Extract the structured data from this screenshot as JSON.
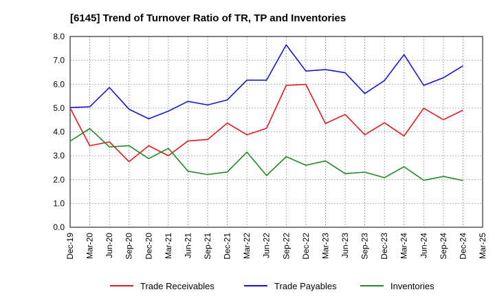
{
  "chart_data": {
    "type": "line",
    "title": "[6145]  Trend of Turnover Ratio of TR, TP and Inventories",
    "xlabel": "",
    "ylabel": "",
    "ylim": [
      0,
      8
    ],
    "yticks": [
      "0.0",
      "1.0",
      "2.0",
      "3.0",
      "4.0",
      "5.0",
      "6.0",
      "7.0",
      "8.0"
    ],
    "x_tick_labels": [
      "Dec-19",
      "Mar-20",
      "Jun-20",
      "Sep-20",
      "Dec-20",
      "Mar-21",
      "Jun-21",
      "Sep-21",
      "Dec-21",
      "Mar-22",
      "Jun-22",
      "Sep-22",
      "Dec-22",
      "Mar-23",
      "Jun-23",
      "Sep-23",
      "Dec-23",
      "Mar-24",
      "Jun-24",
      "Sep-24",
      "Dec-24",
      "Mar-25"
    ],
    "x": [
      "Dec-19",
      "Mar-20",
      "Jun-20",
      "Sep-20",
      "Dec-20",
      "Mar-21",
      "Jun-21",
      "Sep-21",
      "Dec-21",
      "Mar-22",
      "Jun-22",
      "Sep-22",
      "Dec-22",
      "Mar-23",
      "Jun-23",
      "Sep-23",
      "Dec-23",
      "Mar-24",
      "Jun-24",
      "Sep-24",
      "Dec-24"
    ],
    "grid": true,
    "legend_position": "bottom",
    "series": [
      {
        "name": "Trade Receivables",
        "color": "#e8161b",
        "values": [
          5.0,
          3.42,
          3.58,
          2.75,
          3.42,
          3.0,
          3.62,
          3.68,
          4.37,
          3.88,
          4.15,
          5.95,
          5.99,
          4.35,
          4.73,
          3.88,
          4.38,
          3.83,
          4.99,
          4.51,
          4.91
        ]
      },
      {
        "name": "Trade Payables",
        "color": "#1414d9",
        "values": [
          5.02,
          5.05,
          5.86,
          4.95,
          4.55,
          4.87,
          5.28,
          5.13,
          5.34,
          6.17,
          6.17,
          7.65,
          6.55,
          6.61,
          6.48,
          5.61,
          6.15,
          7.24,
          5.95,
          6.27,
          6.77
        ]
      },
      {
        "name": "Inventories",
        "color": "#1f8a1f",
        "values": [
          3.61,
          4.14,
          3.37,
          3.42,
          2.88,
          3.31,
          2.35,
          2.21,
          2.32,
          3.15,
          2.17,
          2.96,
          2.6,
          2.78,
          2.25,
          2.31,
          2.08,
          2.54,
          1.97,
          2.13,
          1.96
        ]
      }
    ]
  }
}
